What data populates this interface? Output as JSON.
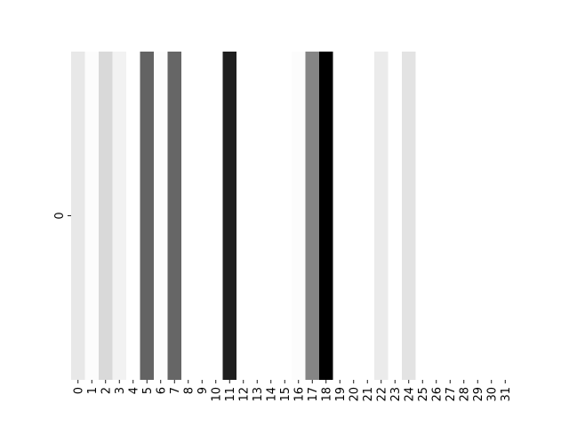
{
  "chart_data": {
    "type": "heatmap",
    "title": "",
    "xlabel": "",
    "ylabel": "",
    "x_categories": [
      "0",
      "1",
      "2",
      "3",
      "4",
      "5",
      "6",
      "7",
      "8",
      "9",
      "10",
      "11",
      "12",
      "13",
      "14",
      "15",
      "16",
      "17",
      "18",
      "19",
      "20",
      "21",
      "22",
      "23",
      "24",
      "25",
      "26",
      "27",
      "28",
      "29",
      "30",
      "31"
    ],
    "y_categories": [
      "0"
    ],
    "colormap": "greys",
    "grid": false,
    "legend": "none",
    "values": [
      [
        0.09,
        0.01,
        0.15,
        0.05,
        0.0,
        0.61,
        0.01,
        0.6,
        0.0,
        0.0,
        0.0,
        0.88,
        0.0,
        0.0,
        0.0,
        0.0,
        0.01,
        0.48,
        1.0,
        0.0,
        0.0,
        0.0,
        0.08,
        0.0,
        0.11,
        0.0,
        0.0,
        0.0,
        0.0,
        0.0,
        0.0,
        0.0
      ]
    ]
  }
}
